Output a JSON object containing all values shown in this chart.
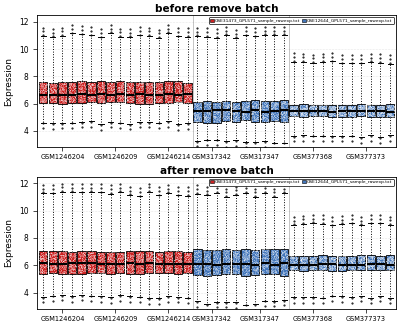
{
  "title_top": "before remove batch",
  "title_bottom": "after remove batch",
  "ylabel": "Expression",
  "legend_red": "GSE31473_GPL571_sample_rawexp.txt",
  "legend_blue": "GSE12644_GPL571_sample_rawexp.txt",
  "xtick_labels": [
    "GSM1246204",
    "GSM1246209",
    "GSM1246214",
    "GSM317342",
    "GSM317347",
    "GSM377368",
    "GSM377373"
  ],
  "ylim": [
    2.8,
    12.5
  ],
  "yticks": [
    4,
    6,
    8,
    10,
    12
  ],
  "n_red": 16,
  "n_blue_group1": 10,
  "n_blue_group2": 11,
  "red_color": "#CC2222",
  "blue_color": "#4477BB",
  "bg_color": "#FFFFFF",
  "top_boxes": {
    "red": {
      "median": 6.65,
      "q1": 6.05,
      "q3": 7.6,
      "whisker_lo": 4.6,
      "whisker_hi": 11.0
    },
    "blue_g1": {
      "median": 5.45,
      "q1": 4.7,
      "q3": 6.2,
      "whisker_lo": 3.3,
      "whisker_hi": 11.0
    },
    "blue_g2": {
      "median": 5.45,
      "q1": 5.05,
      "q3": 5.9,
      "whisker_lo": 3.6,
      "whisker_hi": 9.0
    }
  },
  "bottom_boxes": {
    "red": {
      "median": 6.1,
      "q1": 5.4,
      "q3": 7.0,
      "whisker_lo": 3.7,
      "whisker_hi": 11.2
    },
    "blue_g1": {
      "median": 6.1,
      "q1": 5.3,
      "q3": 7.2,
      "whisker_lo": 3.3,
      "whisker_hi": 11.2
    },
    "blue_g2": {
      "median": 6.05,
      "q1": 5.65,
      "q3": 6.7,
      "whisker_lo": 3.7,
      "whisker_hi": 9.0
    }
  },
  "label_splits": {
    "red": [
      5,
      6,
      5
    ],
    "blue_g1": [
      4,
      6
    ],
    "blue_g2": [
      5,
      6
    ]
  }
}
